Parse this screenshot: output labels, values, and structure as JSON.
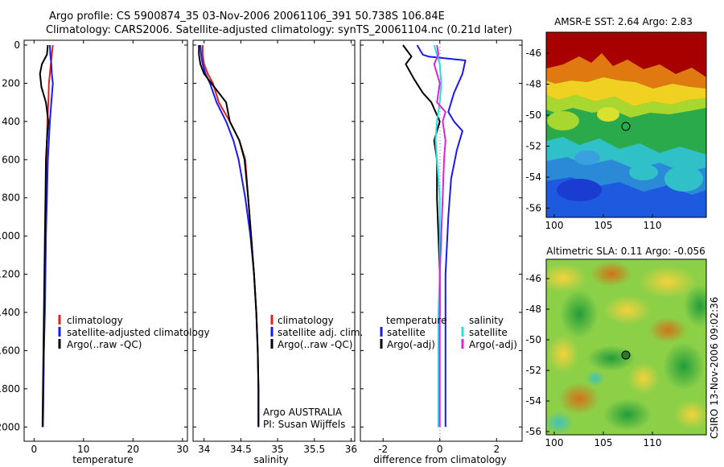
{
  "header": {
    "line1": "Argo profile: CS 5900874_35 03-Nov-2006 20061106_391 50.738S 106.84E",
    "line2": "Climatology: CARS2006. Satellite-adjusted climatology: synTS_20061104.nc (0.21d later)"
  },
  "colors": {
    "climatology": "#dd2222",
    "satellite": "#1a1aee",
    "argo": "#000000",
    "sal_satellite": "#22e0e0",
    "sal_argo": "#dd22dd"
  },
  "depth_ticks": [
    "0",
    "200",
    "400",
    "600",
    "800",
    "1000",
    "1200",
    "1400",
    "1600",
    "1800",
    "2000"
  ],
  "chart_data": [
    {
      "type": "line",
      "name": "temperature panel",
      "xlabel": "temperature",
      "ylim": [
        0,
        2100
      ],
      "xlim": [
        -2,
        31
      ],
      "xticks": [
        "0",
        "10",
        "20",
        "30"
      ],
      "legend_position": "lower-right",
      "legend": [
        "climatology",
        "satellite-adjusted climatology",
        "Argo(..raw -QC)"
      ],
      "series": [
        {
          "name": "climatology",
          "color_key": "climatology",
          "x": [
            3.8,
            3.6,
            3.4,
            3.2,
            3.0,
            2.9,
            2.7,
            2.6,
            2.5,
            2.4,
            2.3,
            2.2,
            2.1,
            2.0,
            1.9,
            1.8
          ],
          "y": [
            0,
            50,
            100,
            150,
            200,
            300,
            400,
            500,
            600,
            800,
            1000,
            1200,
            1400,
            1600,
            1800,
            2000
          ]
        },
        {
          "name": "satellite-adjusted climatology",
          "color_key": "satellite",
          "x": [
            3.2,
            3.3,
            3.5,
            3.6,
            3.8,
            3.5,
            3.2,
            3.0,
            2.8,
            2.6,
            2.4,
            2.3,
            2.2,
            2.0,
            1.9,
            1.8
          ],
          "y": [
            0,
            50,
            100,
            150,
            200,
            300,
            400,
            500,
            600,
            800,
            1000,
            1200,
            1400,
            1600,
            1800,
            2000
          ]
        },
        {
          "name": "Argo(..raw -QC)",
          "color_key": "argo",
          "x": [
            2.8,
            2.6,
            1.6,
            1.2,
            1.5,
            2.4,
            2.9,
            2.6,
            2.4,
            2.3,
            2.2,
            2.1,
            2.0,
            1.9,
            1.8,
            1.7
          ],
          "y": [
            0,
            50,
            100,
            150,
            220,
            300,
            400,
            500,
            600,
            800,
            1000,
            1200,
            1400,
            1600,
            1800,
            2000
          ]
        }
      ]
    },
    {
      "type": "line",
      "name": "salinity panel",
      "xlabel": "salinity",
      "ylim": [
        0,
        2100
      ],
      "xlim": [
        33.85,
        36.05
      ],
      "xticks": [
        "34",
        "34.5",
        "35",
        "35.5",
        "36"
      ],
      "legend_position": "lower-right",
      "legend": [
        "climatology",
        "satellite adj. clim.",
        "Argo(..raw -QC)"
      ],
      "annotation": [
        "Argo AUSTRALIA",
        "PI: Susan Wijffels"
      ],
      "series": [
        {
          "name": "climatology",
          "color_key": "climatology",
          "x": [
            33.98,
            33.98,
            34.0,
            34.05,
            34.12,
            34.2,
            34.35,
            34.48,
            34.56,
            34.6,
            34.64,
            34.68,
            34.71,
            34.73,
            34.74,
            34.74
          ],
          "y": [
            0,
            50,
            100,
            150,
            200,
            300,
            400,
            500,
            600,
            800,
            1000,
            1200,
            1400,
            1600,
            1800,
            2000
          ]
        },
        {
          "name": "satellite adj. clim.",
          "color_key": "satellite",
          "x": [
            33.95,
            33.96,
            33.98,
            34.02,
            34.08,
            34.17,
            34.3,
            34.4,
            34.47,
            34.56,
            34.63,
            34.68,
            34.71,
            34.73,
            34.74,
            34.74
          ],
          "y": [
            0,
            50,
            100,
            150,
            200,
            300,
            400,
            500,
            600,
            800,
            1000,
            1200,
            1400,
            1600,
            1800,
            2000
          ]
        },
        {
          "name": "Argo(..raw -QC)",
          "color_key": "argo",
          "x": [
            33.93,
            33.93,
            33.95,
            34.0,
            34.1,
            34.3,
            34.35,
            34.48,
            34.55,
            34.6,
            34.64,
            34.68,
            34.71,
            34.73,
            34.74,
            34.74
          ],
          "y": [
            0,
            50,
            100,
            150,
            200,
            300,
            400,
            500,
            600,
            800,
            1000,
            1200,
            1400,
            1600,
            1800,
            2000
          ]
        }
      ]
    },
    {
      "type": "line",
      "name": "difference panel",
      "xlabel": "difference from climatology",
      "ylim": [
        0,
        2100
      ],
      "xlim": [
        -2.8,
        2.9
      ],
      "xticks": [
        "-2",
        "0",
        "2"
      ],
      "legend_position": "lower-center",
      "legend_headers": [
        "temperature",
        "salinity"
      ],
      "legend_left": [
        "satellite",
        "Argo(-adj)"
      ],
      "legend_right": [
        "satellite",
        "Argo(-adj)"
      ],
      "series": [
        {
          "name": "temperature satellite",
          "color_key": "satellite",
          "x": [
            -0.8,
            -0.6,
            -0.4,
            0.9,
            0.8,
            0.5,
            0.3,
            0.5,
            0.8,
            0.6,
            0.4,
            0.3,
            0.2,
            0.2,
            0.2,
            0.2
          ],
          "y": [
            0,
            50,
            60,
            80,
            150,
            250,
            350,
            400,
            450,
            550,
            700,
            900,
            1200,
            1500,
            1800,
            2000
          ]
        },
        {
          "name": "temperature Argo(-adj)",
          "color_key": "argo",
          "x": [
            -1.3,
            -1.0,
            -1.2,
            -0.9,
            -0.6,
            -0.3,
            0.0,
            -0.2,
            -0.1,
            -0.1,
            -0.05,
            0.0,
            0.0,
            -0.05,
            -0.05,
            -0.05
          ],
          "y": [
            0,
            60,
            100,
            180,
            250,
            300,
            400,
            500,
            600,
            800,
            1000,
            1200,
            1400,
            1600,
            1800,
            2000
          ]
        },
        {
          "name": "salinity satellite",
          "color_key": "sal_satellite",
          "x": [
            -0.2,
            -0.1,
            0.0,
            0.05,
            0.0,
            -0.1,
            -0.15,
            -0.1,
            0.0,
            0.0,
            0.0,
            -0.05,
            -0.05,
            -0.05,
            -0.05,
            -0.05
          ],
          "y": [
            0,
            50,
            100,
            200,
            300,
            400,
            500,
            600,
            800,
            1000,
            1200,
            1400,
            1600,
            1800,
            1900,
            2000
          ]
        },
        {
          "name": "salinity Argo(-adj)",
          "color_key": "sal_argo",
          "x": [
            -0.1,
            -0.05,
            -0.2,
            0.0,
            -0.1,
            0.2,
            0.1,
            0.2,
            0.15,
            0.1,
            0.05,
            0.0,
            0.0,
            0.0,
            0.0,
            0.0
          ],
          "y": [
            0,
            50,
            100,
            200,
            300,
            350,
            400,
            500,
            600,
            800,
            1000,
            1200,
            1400,
            1600,
            1800,
            2000
          ]
        }
      ]
    }
  ],
  "maps": [
    {
      "title": "AMSR-E SST: 2.64 Argo: 2.83",
      "xticks": [
        "100",
        "105",
        "110"
      ],
      "yticks": [
        "-46",
        "-48",
        "-50",
        "-52",
        "-54",
        "-56"
      ],
      "marker_fill": "none"
    },
    {
      "title": "Altimetric SLA: 0.11 Argo: -0.056",
      "xticks": [
        "100",
        "105",
        "110"
      ],
      "yticks": [
        "-46",
        "-48",
        "-50",
        "-52",
        "-54",
        "-56"
      ],
      "marker_fill": "#2a7a2a"
    }
  ],
  "credit": "CSIRO 13-Nov-2006 09:02:36"
}
